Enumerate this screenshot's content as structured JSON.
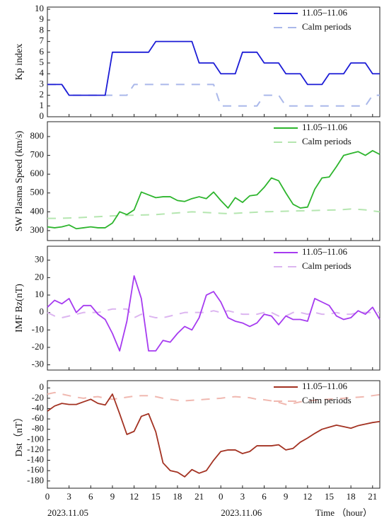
{
  "chart_data": [
    {
      "type": "line",
      "ylabel": "Kp index",
      "legend": "upper right",
      "x": [
        0,
        1,
        2,
        3,
        4,
        5,
        6,
        7,
        8,
        9,
        10,
        11,
        12,
        13,
        14,
        15,
        16,
        17,
        18,
        19,
        20,
        21,
        22,
        23,
        24,
        25,
        26,
        27,
        28,
        29,
        30,
        31,
        32,
        33,
        34,
        35,
        36,
        37,
        38,
        39,
        40,
        41,
        42,
        43,
        44,
        45,
        46
      ],
      "xlim": [
        0,
        46
      ],
      "ylim": [
        0,
        10.2
      ],
      "yticks": [
        0,
        1,
        2,
        3,
        4,
        5,
        6,
        7,
        8,
        9,
        10
      ],
      "series": [
        {
          "name": "11.05–11.06",
          "color": "#1c1cd6",
          "dashed": false,
          "values": [
            3,
            3,
            3,
            2,
            2,
            2,
            2,
            2,
            2,
            6,
            6,
            6,
            6,
            6,
            6,
            7,
            7,
            7,
            7,
            7,
            7,
            5,
            5,
            5,
            4,
            4,
            4,
            6,
            6,
            6,
            5,
            5,
            5,
            4,
            4,
            4,
            3,
            3,
            3,
            4,
            4,
            4,
            5,
            5,
            5,
            4,
            4
          ]
        },
        {
          "name": "Calm periods",
          "color": "#aab8ea",
          "dashed": true,
          "values": [
            3,
            3,
            3,
            2,
            2,
            2,
            2,
            2,
            2,
            2,
            2,
            2,
            3,
            3,
            3,
            3,
            3,
            3,
            3,
            3,
            3,
            3,
            3,
            3,
            1,
            1,
            1,
            1,
            1,
            1,
            2,
            2,
            2,
            1,
            1,
            1,
            1,
            1,
            1,
            1,
            1,
            1,
            1,
            1,
            1,
            2,
            2
          ]
        }
      ]
    },
    {
      "type": "line",
      "ylabel": "SW Plasma Speed (km/s)",
      "legend": "upper right",
      "x": [
        0,
        1,
        2,
        3,
        4,
        5,
        6,
        7,
        8,
        9,
        10,
        11,
        12,
        13,
        14,
        15,
        16,
        17,
        18,
        19,
        20,
        21,
        22,
        23,
        24,
        25,
        26,
        27,
        28,
        29,
        30,
        31,
        32,
        33,
        34,
        35,
        36,
        37,
        38,
        39,
        40,
        41,
        42,
        43,
        44,
        45,
        46
      ],
      "xlim": [
        0,
        46
      ],
      "ylim": [
        247,
        879
      ],
      "yticks": [
        300,
        400,
        500,
        600,
        700,
        800
      ],
      "series": [
        {
          "name": "11.05–11.06",
          "color": "#2db52d",
          "dashed": false,
          "values": [
            320,
            315,
            320,
            330,
            310,
            315,
            320,
            315,
            315,
            340,
            400,
            385,
            410,
            505,
            490,
            475,
            480,
            480,
            460,
            455,
            470,
            480,
            470,
            505,
            460,
            420,
            475,
            450,
            485,
            490,
            530,
            580,
            565,
            500,
            440,
            420,
            425,
            520,
            580,
            585,
            640,
            700,
            710,
            720,
            700,
            725,
            705
          ]
        },
        {
          "name": "Calm periods",
          "color": "#b5e6b0",
          "dashed": true,
          "values": [
            365,
            365,
            366,
            367,
            368,
            370,
            372,
            374,
            376,
            378,
            380,
            381,
            382,
            383,
            384,
            385,
            388,
            391,
            394,
            397,
            400,
            398,
            396,
            394,
            392,
            390,
            392,
            394,
            396,
            398,
            400,
            401,
            402,
            403,
            404,
            405,
            406,
            407,
            408,
            409,
            410,
            412,
            415,
            413,
            410,
            405,
            400
          ]
        }
      ]
    },
    {
      "type": "line",
      "ylabel": "IMF Bz(nT)",
      "legend": "upper right",
      "x": [
        0,
        1,
        2,
        3,
        4,
        5,
        6,
        7,
        8,
        9,
        10,
        11,
        12,
        13,
        14,
        15,
        16,
        17,
        18,
        19,
        20,
        21,
        22,
        23,
        24,
        25,
        26,
        27,
        28,
        29,
        30,
        31,
        32,
        33,
        34,
        35,
        36,
        37,
        38,
        39,
        40,
        41,
        42,
        43,
        44,
        45,
        46
      ],
      "xlim": [
        0,
        46
      ],
      "ylim": [
        -33,
        38
      ],
      "yticks": [
        -30,
        -20,
        -10,
        0,
        10,
        20,
        30
      ],
      "series": [
        {
          "name": "11.05–11.06",
          "color": "#a63bf0",
          "dashed": false,
          "values": [
            3,
            7,
            5,
            8,
            0,
            4,
            4,
            -1,
            -4,
            -12,
            -22,
            -5,
            21,
            8,
            -22,
            -22,
            -16,
            -17,
            -12,
            -8,
            -10,
            -3,
            10,
            12,
            6,
            -3,
            -5,
            -6,
            -8,
            -6,
            -1,
            -2,
            -7,
            -2,
            -4,
            -4,
            -5,
            8,
            6,
            4,
            -2,
            -4,
            -3,
            1,
            -1,
            3,
            -4
          ]
        },
        {
          "name": "Calm periods",
          "color": "#dcb5f0",
          "dashed": true,
          "values": [
            0,
            -2,
            -3,
            -2,
            -1,
            0,
            0,
            0,
            1,
            2,
            2,
            2,
            -3,
            -1,
            -2,
            -3,
            -3,
            -2,
            -1,
            0,
            0,
            0,
            0,
            1,
            0,
            1,
            0,
            -1,
            -1,
            -1,
            0,
            0,
            -2,
            -2,
            0,
            0,
            -1,
            0,
            -1,
            -1,
            0,
            -1,
            -1,
            0,
            0,
            0,
            0
          ]
        }
      ]
    },
    {
      "type": "line",
      "ylabel": "Dst（nT）",
      "legend": "upper right",
      "xlabel": "Time （hour）",
      "annotations": [
        {
          "text": "2023.11.05",
          "x": 0
        },
        {
          "text": "2023.11.06",
          "x": 24
        }
      ],
      "x": [
        0,
        1,
        2,
        3,
        4,
        5,
        6,
        7,
        8,
        9,
        10,
        11,
        12,
        13,
        14,
        15,
        16,
        17,
        18,
        19,
        20,
        21,
        22,
        23,
        24,
        25,
        26,
        27,
        28,
        29,
        30,
        31,
        32,
        33,
        34,
        35,
        36,
        37,
        38,
        39,
        40,
        41,
        42,
        43,
        44,
        45,
        46
      ],
      "xlim": [
        0,
        46
      ],
      "ylim": [
        -194,
        14
      ],
      "yticks": [
        -180,
        -160,
        -140,
        -120,
        -100,
        -80,
        -60,
        -40,
        -20,
        0
      ],
      "xticks": [
        0,
        3,
        6,
        9,
        12,
        15,
        18,
        21,
        {
          "value": 24,
          "label": "0"
        },
        {
          "value": 27,
          "label": "3"
        },
        {
          "value": 30,
          "label": "6"
        },
        {
          "value": 33,
          "label": "9"
        },
        {
          "value": 36,
          "label": "12"
        },
        {
          "value": 39,
          "label": "15"
        },
        {
          "value": 42,
          "label": "18"
        },
        {
          "value": 45,
          "label": "21"
        }
      ],
      "series": [
        {
          "name": "11.05–11.06",
          "color": "#a33222",
          "dashed": false,
          "values": [
            -45,
            -35,
            -30,
            -32,
            -32,
            -27,
            -22,
            -30,
            -33,
            -12,
            -50,
            -90,
            -84,
            -55,
            -50,
            -85,
            -145,
            -160,
            -163,
            -172,
            -158,
            -165,
            -160,
            -140,
            -123,
            -120,
            -120,
            -127,
            -123,
            -112,
            -112,
            -112,
            -110,
            -120,
            -117,
            -105,
            -97,
            -88,
            -80,
            -76,
            -72,
            -75,
            -78,
            -73,
            -70,
            -67,
            -65
          ]
        },
        {
          "name": "Calm periods",
          "color": "#f0b8b0",
          "dashed": true,
          "values": [
            -12,
            -9,
            -12,
            -15,
            -18,
            -20,
            -18,
            -17,
            -20,
            -22,
            -20,
            -18,
            -16,
            -15,
            -15,
            -17,
            -20,
            -22,
            -24,
            -25,
            -24,
            -23,
            -22,
            -21,
            -20,
            -18,
            -17,
            -18,
            -19,
            -22,
            -23,
            -25,
            -28,
            -32,
            -30,
            -27,
            -25,
            -24,
            -23,
            -22,
            -21,
            -20,
            -19,
            -18,
            -17,
            -15,
            -13
          ]
        }
      ]
    }
  ]
}
